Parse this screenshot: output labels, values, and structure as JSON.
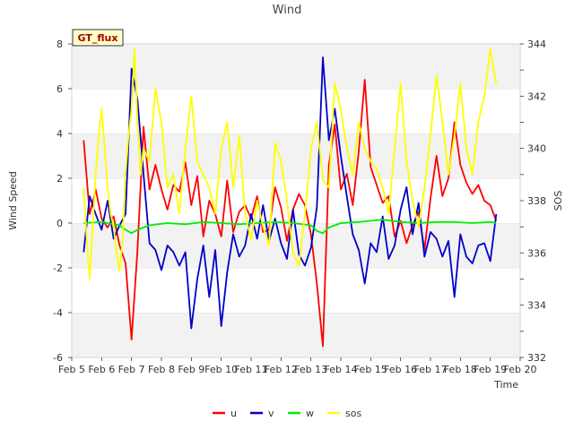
{
  "chart_data": {
    "type": "line",
    "title": "Wind",
    "xlabel": "Time",
    "ylabel": "Wind Speed",
    "y2label": "SOS",
    "badge": "GT_flux",
    "x_ticks": [
      "Feb 5",
      "Feb 6",
      "Feb 7",
      "Feb 8",
      "Feb 9",
      "Feb 10",
      "Feb 11",
      "Feb 12",
      "Feb 13",
      "Feb 14",
      "Feb 15",
      "Feb 16",
      "Feb 17",
      "Feb 18",
      "Feb 19",
      "Feb 20"
    ],
    "y_ticks": [
      "-6",
      "-4",
      "-2",
      "0",
      "2",
      "4",
      "6",
      "8"
    ],
    "y2_ticks": [
      "332",
      "334",
      "336",
      "338",
      "340",
      "342",
      "344"
    ],
    "xlim_days": [
      5,
      20
    ],
    "ylim": [
      -6,
      8
    ],
    "y2lim": [
      332,
      344
    ],
    "grid": "horizontal bands",
    "legend_position": "bottom-center",
    "series": [
      {
        "name": "u",
        "axis": "left",
        "color": "#ff0000",
        "x": [
          5.4,
          5.6,
          5.8,
          6.0,
          6.2,
          6.4,
          6.6,
          6.8,
          7.0,
          7.2,
          7.4,
          7.6,
          7.8,
          8.0,
          8.2,
          8.4,
          8.6,
          8.8,
          9.0,
          9.2,
          9.4,
          9.6,
          9.8,
          10.0,
          10.2,
          10.4,
          10.6,
          10.8,
          11.0,
          11.2,
          11.4,
          11.6,
          11.8,
          12.0,
          12.2,
          12.4,
          12.6,
          12.8,
          13.0,
          13.2,
          13.4,
          13.6,
          13.8,
          14.0,
          14.2,
          14.4,
          14.6,
          14.8,
          15.0,
          15.2,
          15.4,
          15.6,
          15.8,
          16.0,
          16.2,
          16.4,
          16.6,
          16.8,
          17.0,
          17.2,
          17.4,
          17.6,
          17.8,
          18.0,
          18.2,
          18.4,
          18.6,
          18.8,
          19.0,
          19.2
        ],
        "y": [
          3.7,
          0.4,
          1.5,
          0.2,
          -0.2,
          0.3,
          -1.0,
          -1.8,
          -5.2,
          -1.2,
          4.3,
          1.5,
          2.6,
          1.5,
          0.6,
          1.7,
          1.4,
          2.7,
          0.8,
          2.1,
          -0.6,
          1.0,
          0.4,
          -0.6,
          1.9,
          -0.4,
          0.5,
          0.8,
          0.2,
          1.2,
          -0.4,
          -0.3,
          1.6,
          0.7,
          -0.8,
          0.6,
          1.3,
          0.8,
          -0.5,
          -2.7,
          -5.5,
          2.6,
          4.4,
          1.5,
          2.2,
          0.8,
          3.2,
          6.4,
          2.5,
          1.7,
          0.9,
          1.2,
          -0.6,
          0.1,
          -0.9,
          -0.1,
          0.5,
          -1.2,
          1.1,
          3.0,
          1.2,
          2.0,
          4.5,
          2.6,
          1.8,
          1.3,
          1.7,
          1.0,
          0.8,
          0.1
        ]
      },
      {
        "name": "v",
        "axis": "left",
        "color": "#0000cc",
        "x": [
          5.4,
          5.6,
          5.8,
          6.0,
          6.2,
          6.4,
          6.6,
          6.8,
          7.0,
          7.2,
          7.4,
          7.6,
          7.8,
          8.0,
          8.2,
          8.4,
          8.6,
          8.8,
          9.0,
          9.2,
          9.4,
          9.6,
          9.8,
          10.0,
          10.2,
          10.4,
          10.6,
          10.8,
          11.0,
          11.2,
          11.4,
          11.6,
          11.8,
          12.0,
          12.2,
          12.4,
          12.6,
          12.8,
          13.0,
          13.2,
          13.4,
          13.6,
          13.8,
          14.0,
          14.2,
          14.4,
          14.6,
          14.8,
          15.0,
          15.2,
          15.4,
          15.6,
          15.8,
          16.0,
          16.2,
          16.4,
          16.6,
          16.8,
          17.0,
          17.2,
          17.4,
          17.6,
          17.8,
          18.0,
          18.2,
          18.4,
          18.6,
          18.8,
          19.0,
          19.2
        ],
        "y": [
          -1.3,
          1.2,
          0.4,
          -0.3,
          1.0,
          -0.7,
          -0.1,
          0.4,
          6.9,
          5.5,
          2.2,
          -0.9,
          -1.2,
          -2.1,
          -1.0,
          -1.3,
          -1.9,
          -1.3,
          -4.7,
          -2.5,
          -1.0,
          -3.3,
          -1.2,
          -4.6,
          -2.2,
          -0.5,
          -1.5,
          -1.0,
          0.4,
          -0.7,
          0.8,
          -0.8,
          0.2,
          -0.9,
          -1.6,
          0.6,
          -1.4,
          -1.9,
          -1.1,
          0.7,
          7.4,
          3.7,
          5.1,
          3.0,
          1.2,
          -0.5,
          -1.2,
          -2.7,
          -0.9,
          -1.3,
          0.3,
          -1.6,
          -1.0,
          0.6,
          1.6,
          -0.5,
          0.9,
          -1.5,
          -0.4,
          -0.7,
          -1.5,
          -0.8,
          -3.3,
          -0.5,
          -1.5,
          -1.8,
          -1.0,
          -0.9,
          -1.7,
          0.4
        ]
      },
      {
        "name": "w",
        "axis": "left",
        "color": "#00ee00",
        "x": [
          5.4,
          6.0,
          6.6,
          6.8,
          7.0,
          7.2,
          7.6,
          8.2,
          8.8,
          9.4,
          10.0,
          10.6,
          11.2,
          11.8,
          12.4,
          13.0,
          13.2,
          13.4,
          13.6,
          14.0,
          14.6,
          15.0,
          15.4,
          16.0,
          16.6,
          17.2,
          17.8,
          18.4,
          19.0,
          19.2
        ],
        "y": [
          0.0,
          0.05,
          -0.1,
          -0.3,
          -0.45,
          -0.3,
          -0.1,
          0.0,
          -0.05,
          0.05,
          0.0,
          -0.05,
          0.0,
          0.05,
          0.0,
          -0.1,
          -0.35,
          -0.45,
          -0.2,
          0.0,
          0.05,
          0.1,
          0.15,
          0.05,
          0.0,
          0.05,
          0.05,
          0.0,
          0.05,
          0.0
        ]
      },
      {
        "name": "sos",
        "axis": "right",
        "color": "#ffff00",
        "x": [
          5.4,
          5.5,
          5.6,
          5.7,
          5.8,
          5.9,
          6.0,
          6.1,
          6.2,
          6.3,
          6.4,
          6.5,
          6.6,
          6.7,
          6.8,
          6.9,
          7.0,
          7.1,
          7.2,
          7.3,
          7.4,
          7.6,
          7.8,
          8.0,
          8.2,
          8.4,
          8.6,
          8.8,
          9.0,
          9.2,
          9.4,
          9.6,
          9.8,
          10.0,
          10.2,
          10.4,
          10.6,
          10.8,
          11.0,
          11.2,
          11.4,
          11.6,
          11.8,
          12.0,
          12.2,
          12.4,
          12.6,
          12.8,
          13.0,
          13.2,
          13.4,
          13.6,
          13.8,
          14.0,
          14.2,
          14.4,
          14.6,
          14.8,
          15.0,
          15.2,
          15.4,
          15.6,
          15.8,
          16.0,
          16.2,
          16.4,
          16.6,
          16.8,
          17.0,
          17.2,
          17.4,
          17.6,
          17.8,
          18.0,
          18.2,
          18.4,
          18.6,
          18.8,
          19.0,
          19.2
        ],
        "y": [
          338.5,
          336.5,
          335.0,
          337.0,
          339.0,
          340.5,
          341.5,
          340.0,
          338.5,
          337.5,
          337.0,
          336.0,
          335.3,
          336.5,
          339.0,
          340.5,
          341.5,
          343.8,
          341.0,
          339.0,
          340.0,
          339.5,
          342.3,
          341.0,
          338.5,
          339.0,
          337.5,
          340.0,
          342.0,
          339.5,
          339.0,
          338.5,
          337.5,
          340.0,
          341.0,
          338.5,
          340.5,
          337.5,
          336.5,
          338.0,
          337.0,
          336.3,
          340.2,
          339.5,
          338.0,
          336.0,
          335.5,
          337.5,
          340.0,
          341.0,
          338.8,
          338.5,
          342.5,
          341.5,
          340.0,
          339.0,
          341.0,
          340.0,
          339.5,
          339.2,
          338.5,
          337.5,
          340.0,
          342.5,
          339.5,
          338.0,
          337.0,
          338.5,
          340.5,
          342.8,
          341.0,
          339.0,
          340.5,
          342.5,
          340.0,
          339.0,
          341.0,
          342.0,
          343.8,
          342.5
        ]
      }
    ]
  }
}
